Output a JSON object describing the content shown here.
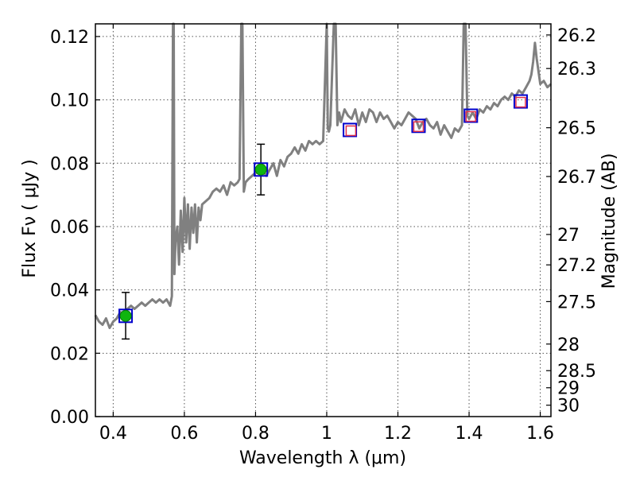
{
  "chart_data": {
    "type": "line",
    "xlabel": "Wavelength  λ (μm)",
    "ylabel": "Flux  Fν  ( μJy )",
    "ylabel_right": "Magnitude (AB)",
    "xlim": [
      0.35,
      1.63
    ],
    "ylim": [
      0.0,
      0.124
    ],
    "grid": true,
    "colors": {
      "spectrum": "#808080",
      "photometry_box": "#0000cc",
      "model_box": "#e0304a",
      "measured_point": "#0fb50f",
      "errorbar": "#000000"
    },
    "x_ticks": [
      0.4,
      0.6,
      0.8,
      1.0,
      1.2,
      1.4,
      1.6
    ],
    "x_tick_labels": [
      "0.4",
      "0.6",
      "0.8",
      "1",
      "1.2",
      "1.4",
      "1.6"
    ],
    "y_ticks": [
      0.0,
      0.02,
      0.04,
      0.06,
      0.08,
      0.1,
      0.12
    ],
    "y_tick_labels": [
      "0.00",
      "0.02",
      "0.04",
      "0.06",
      "0.08",
      "0.10",
      "0.12"
    ],
    "right_ticks": [
      {
        "label": "26.2",
        "flux": 0.1205
      },
      {
        "label": "26.3",
        "flux": 0.1099
      },
      {
        "label": "26.5",
        "flux": 0.0912
      },
      {
        "label": "26.7",
        "flux": 0.0758
      },
      {
        "label": "27",
        "flux": 0.0575
      },
      {
        "label": "27.2",
        "flux": 0.0479
      },
      {
        "label": "27.5",
        "flux": 0.0363
      },
      {
        "label": "28",
        "flux": 0.0229
      },
      {
        "label": "28.5",
        "flux": 0.0145
      },
      {
        "label": "29",
        "flux": 0.0091
      },
      {
        "label": "30",
        "flux": 0.0036
      }
    ],
    "series": [
      {
        "kind": "spectrum",
        "x": [
          0.35,
          0.36,
          0.37,
          0.38,
          0.39,
          0.4,
          0.41,
          0.42,
          0.43,
          0.44,
          0.45,
          0.46,
          0.47,
          0.48,
          0.49,
          0.5,
          0.51,
          0.52,
          0.53,
          0.54,
          0.55,
          0.56,
          0.565,
          0.568,
          0.57,
          0.572,
          0.575,
          0.58,
          0.585,
          0.59,
          0.595,
          0.6,
          0.605,
          0.61,
          0.615,
          0.62,
          0.625,
          0.63,
          0.635,
          0.64,
          0.645,
          0.65,
          0.66,
          0.67,
          0.68,
          0.69,
          0.7,
          0.71,
          0.72,
          0.73,
          0.74,
          0.75,
          0.755,
          0.76,
          0.763,
          0.767,
          0.772,
          0.78,
          0.79,
          0.8,
          0.81,
          0.82,
          0.83,
          0.84,
          0.85,
          0.86,
          0.87,
          0.88,
          0.89,
          0.9,
          0.91,
          0.92,
          0.93,
          0.94,
          0.95,
          0.96,
          0.97,
          0.98,
          0.99,
          1.0,
          1.003,
          1.006,
          1.01,
          1.02,
          1.025,
          1.03,
          1.035,
          1.04,
          1.05,
          1.06,
          1.07,
          1.08,
          1.09,
          1.1,
          1.11,
          1.12,
          1.13,
          1.14,
          1.15,
          1.16,
          1.17,
          1.18,
          1.19,
          1.2,
          1.21,
          1.22,
          1.23,
          1.24,
          1.25,
          1.26,
          1.27,
          1.28,
          1.29,
          1.3,
          1.31,
          1.32,
          1.33,
          1.34,
          1.35,
          1.36,
          1.37,
          1.38,
          1.385,
          1.39,
          1.395,
          1.4,
          1.41,
          1.42,
          1.43,
          1.44,
          1.45,
          1.46,
          1.47,
          1.48,
          1.49,
          1.5,
          1.51,
          1.52,
          1.53,
          1.54,
          1.55,
          1.56,
          1.57,
          1.575,
          1.58,
          1.585,
          1.59,
          1.6,
          1.61,
          1.62,
          1.63
        ],
        "y": [
          0.032,
          0.03,
          0.029,
          0.031,
          0.028,
          0.03,
          0.031,
          0.033,
          0.032,
          0.034,
          0.035,
          0.034,
          0.035,
          0.036,
          0.035,
          0.036,
          0.037,
          0.036,
          0.037,
          0.036,
          0.037,
          0.035,
          0.038,
          0.124,
          0.124,
          0.045,
          0.055,
          0.06,
          0.048,
          0.065,
          0.052,
          0.069,
          0.055,
          0.067,
          0.053,
          0.066,
          0.058,
          0.067,
          0.055,
          0.066,
          0.062,
          0.067,
          0.068,
          0.069,
          0.071,
          0.072,
          0.071,
          0.073,
          0.07,
          0.074,
          0.073,
          0.074,
          0.075,
          0.124,
          0.124,
          0.071,
          0.074,
          0.075,
          0.076,
          0.077,
          0.077,
          0.078,
          0.076,
          0.078,
          0.08,
          0.076,
          0.081,
          0.079,
          0.082,
          0.083,
          0.085,
          0.083,
          0.086,
          0.084,
          0.087,
          0.086,
          0.087,
          0.086,
          0.087,
          0.124,
          0.091,
          0.09,
          0.092,
          0.124,
          0.124,
          0.092,
          0.096,
          0.093,
          0.097,
          0.095,
          0.094,
          0.097,
          0.092,
          0.096,
          0.093,
          0.097,
          0.096,
          0.093,
          0.096,
          0.094,
          0.095,
          0.093,
          0.091,
          0.093,
          0.092,
          0.094,
          0.096,
          0.095,
          0.094,
          0.091,
          0.093,
          0.094,
          0.092,
          0.091,
          0.093,
          0.089,
          0.092,
          0.09,
          0.088,
          0.091,
          0.09,
          0.092,
          0.124,
          0.124,
          0.095,
          0.094,
          0.096,
          0.094,
          0.097,
          0.096,
          0.098,
          0.097,
          0.099,
          0.098,
          0.1,
          0.101,
          0.1,
          0.102,
          0.101,
          0.103,
          0.102,
          0.104,
          0.106,
          0.108,
          0.112,
          0.118,
          0.113,
          0.105,
          0.106,
          0.104,
          0.105
        ]
      },
      {
        "kind": "photometry_boxes",
        "x": [
          0.435,
          0.815,
          1.065,
          1.258,
          1.405,
          1.545
        ],
        "y": [
          0.0318,
          0.078,
          0.0905,
          0.0918,
          0.095,
          0.0995
        ]
      },
      {
        "kind": "model_boxes",
        "x": [
          1.068,
          1.258,
          1.405,
          1.545
        ],
        "y": [
          0.0905,
          0.0918,
          0.095,
          0.0995
        ]
      },
      {
        "kind": "measured_points",
        "x": [
          0.435,
          0.815
        ],
        "y": [
          0.0318,
          0.078
        ],
        "err_low": [
          0.0245,
          0.07
        ],
        "err_high": [
          0.0392,
          0.086
        ]
      }
    ]
  }
}
